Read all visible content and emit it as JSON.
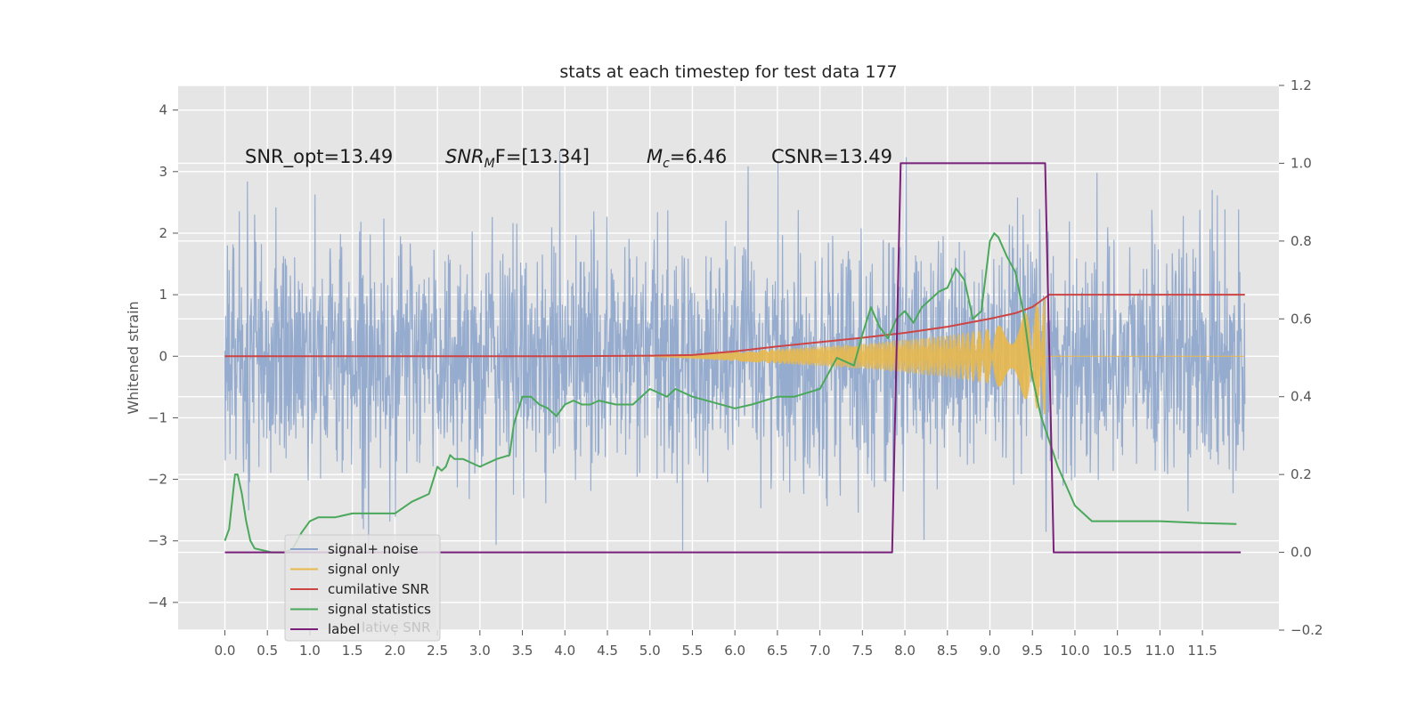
{
  "chart_data": {
    "type": "line",
    "title": "stats at each timestep for test data 177",
    "ylabel": "Whitened strain",
    "xlabel": "",
    "xlim": [
      -0.55,
      12.4
    ],
    "ylim": [
      -4.45,
      4.4
    ],
    "y2lim": [
      -0.2,
      1.2
    ],
    "x_ticks": [
      "0.0",
      "0.5",
      "1.0",
      "1.5",
      "2.0",
      "2.5",
      "3.0",
      "3.5",
      "4.0",
      "4.5",
      "5.0",
      "5.5",
      "6.0",
      "6.5",
      "7.0",
      "7.5",
      "8.0",
      "8.5",
      "9.0",
      "9.5",
      "10.0",
      "10.5",
      "11.0",
      "11.5"
    ],
    "y_ticks": [
      "4",
      "3",
      "2",
      "1",
      "0",
      "−1",
      "−2",
      "−3",
      "−4"
    ],
    "y2_ticks": [
      "1.2",
      "1.0",
      "0.8",
      "0.6",
      "0.4",
      "0.2",
      "0.0",
      "−0.2"
    ],
    "grid": true,
    "legend_position": "lower-left",
    "annotations": {
      "snr_opt": "SNR_opt=13.49",
      "snr_mf_main": "SNR",
      "snr_mf_sub": "M",
      "snr_mf_rest": "F=[13.34]",
      "mc_main": "M",
      "mc_sub": "c",
      "mc_rest": "=6.46",
      "csnr": "CSNR=13.49"
    },
    "legend_ghost": "lative SNR",
    "series": [
      {
        "name": "signal+ noise",
        "color": "#8da5cc",
        "axis": "left",
        "kind": "noise",
        "x_range": [
          0,
          12.0
        ],
        "sigma": 0.95
      },
      {
        "name": "signal only",
        "color": "#e8b84b",
        "axis": "left",
        "kind": "chirp",
        "envelope": {
          "x": [
            5.0,
            6.0,
            7.0,
            7.5,
            8.0,
            8.5,
            9.0,
            9.3,
            9.5,
            9.6,
            9.65
          ],
          "y": [
            0.0,
            0.08,
            0.16,
            0.2,
            0.27,
            0.34,
            0.45,
            0.58,
            0.78,
            0.92,
            0.95
          ]
        }
      },
      {
        "name": "cumilative SNR",
        "color": "#cc4444",
        "axis": "left",
        "x": [
          0,
          2.0,
          4.0,
          5.0,
          5.5,
          6.0,
          6.5,
          7.0,
          7.5,
          8.0,
          8.5,
          9.0,
          9.3,
          9.5,
          9.6,
          9.7,
          12.0
        ],
        "y": [
          0,
          0.0,
          0.0,
          0.01,
          0.02,
          0.08,
          0.16,
          0.23,
          0.3,
          0.38,
          0.48,
          0.61,
          0.7,
          0.8,
          0.9,
          1.0,
          1.0
        ]
      },
      {
        "name": "signal statistics",
        "color": "#4aa85a",
        "axis": "right",
        "x": [
          0.0,
          0.05,
          0.12,
          0.15,
          0.2,
          0.25,
          0.3,
          0.35,
          0.45,
          0.55,
          0.7,
          0.8,
          0.9,
          1.0,
          1.1,
          1.2,
          1.3,
          1.5,
          2.0,
          2.2,
          2.4,
          2.5,
          2.55,
          2.6,
          2.65,
          2.7,
          2.8,
          3.0,
          3.2,
          3.35,
          3.4,
          3.5,
          3.6,
          3.7,
          3.8,
          3.9,
          4.0,
          4.1,
          4.2,
          4.3,
          4.4,
          4.6,
          4.8,
          5.0,
          5.2,
          5.3,
          5.5,
          6.0,
          6.2,
          6.5,
          6.7,
          7.0,
          7.2,
          7.4,
          7.5,
          7.6,
          7.7,
          7.8,
          7.9,
          8.0,
          8.1,
          8.2,
          8.3,
          8.4,
          8.5,
          8.6,
          8.7,
          8.8,
          8.9,
          9.0,
          9.05,
          9.1,
          9.2,
          9.3,
          9.4,
          9.5,
          9.6,
          9.8,
          10.0,
          10.2,
          10.5,
          11.0,
          11.5,
          11.9
        ],
        "y": [
          0.03,
          0.06,
          0.2,
          0.2,
          0.15,
          0.08,
          0.03,
          0.01,
          0.005,
          0.0,
          0.0,
          0.01,
          0.05,
          0.08,
          0.09,
          0.09,
          0.09,
          0.1,
          0.1,
          0.13,
          0.15,
          0.22,
          0.21,
          0.22,
          0.25,
          0.24,
          0.24,
          0.22,
          0.24,
          0.25,
          0.33,
          0.4,
          0.4,
          0.38,
          0.37,
          0.35,
          0.38,
          0.39,
          0.38,
          0.38,
          0.39,
          0.38,
          0.38,
          0.42,
          0.4,
          0.42,
          0.4,
          0.37,
          0.38,
          0.4,
          0.4,
          0.42,
          0.5,
          0.48,
          0.56,
          0.63,
          0.58,
          0.55,
          0.6,
          0.62,
          0.59,
          0.63,
          0.65,
          0.67,
          0.68,
          0.73,
          0.7,
          0.6,
          0.62,
          0.8,
          0.82,
          0.81,
          0.76,
          0.72,
          0.61,
          0.45,
          0.35,
          0.22,
          0.12,
          0.08,
          0.08,
          0.08,
          0.075,
          0.073
        ]
      },
      {
        "name": "label",
        "color": "#7a1f7a",
        "axis": "right",
        "x": [
          0,
          7.85,
          7.95,
          9.65,
          9.75,
          11.95
        ],
        "y": [
          0,
          0,
          1,
          1,
          0,
          0
        ]
      }
    ]
  }
}
